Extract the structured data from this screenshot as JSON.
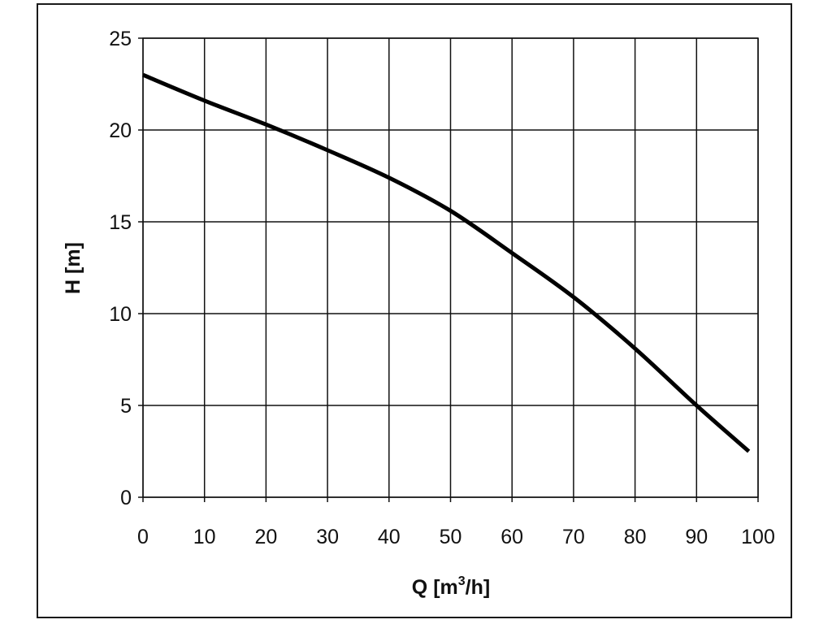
{
  "chart_data": {
    "type": "line",
    "xlabel": "Q [m³/h]",
    "xlabel_main": "Q [m",
    "xlabel_sup": "3",
    "xlabel_tail": "/h]",
    "ylabel": "H [m]",
    "xlim": [
      0,
      100
    ],
    "ylim": [
      0,
      25
    ],
    "xticks": [
      0,
      10,
      20,
      30,
      40,
      50,
      60,
      70,
      80,
      90,
      100
    ],
    "yticks": [
      0,
      5,
      10,
      15,
      20,
      25
    ],
    "grid": true,
    "line_color": "#000000",
    "series": [
      {
        "x": [
          0,
          10,
          20,
          30,
          40,
          50,
          60,
          70,
          80,
          90,
          98.5
        ],
        "y": [
          23.0,
          21.6,
          20.3,
          18.9,
          17.4,
          15.6,
          13.3,
          10.9,
          8.1,
          5.0,
          2.5
        ]
      }
    ]
  }
}
